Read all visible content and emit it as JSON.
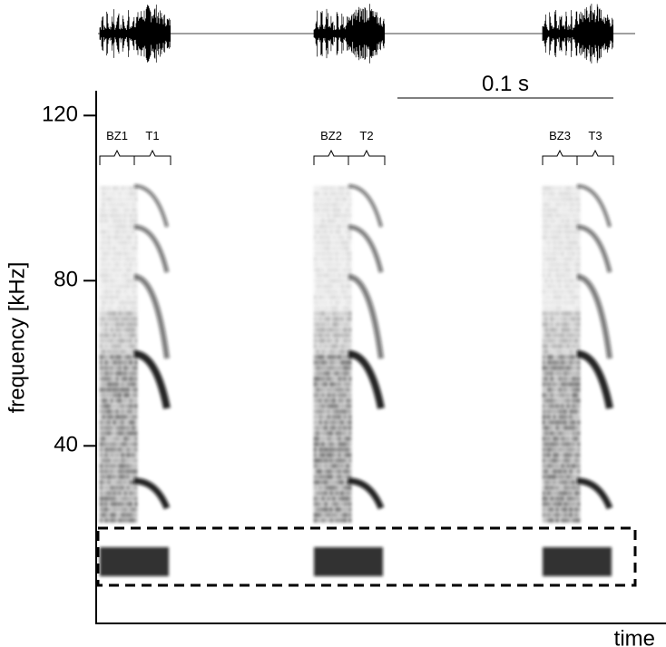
{
  "chart_data": {
    "type": "spectrogram",
    "y_label": "frequency [kHz]",
    "x_label": "time",
    "ylim": [
      -3,
      126
    ],
    "yticks": [
      40,
      80,
      120
    ],
    "scale_bar": "0.1 s",
    "segments": [
      "BZ1",
      "T1",
      "BZ2",
      "T2",
      "BZ3",
      "T3"
    ]
  }
}
